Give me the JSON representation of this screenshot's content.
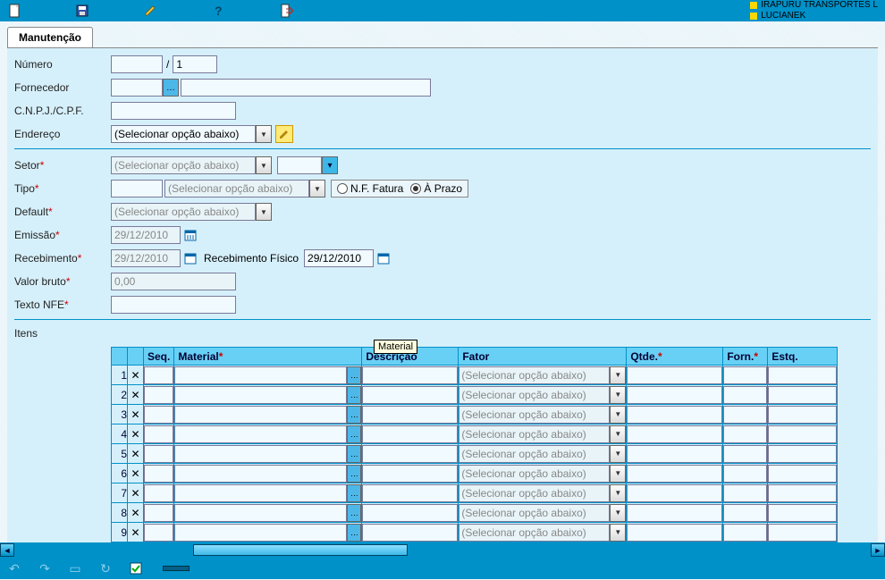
{
  "header": {
    "company_line": "IRAPURU TRANSPORTES L",
    "user_line": "LUCIANEK"
  },
  "tab": {
    "label": "Manutenção"
  },
  "form": {
    "numero": {
      "label": "Número",
      "val1": "",
      "sep": "/",
      "val2": "1"
    },
    "fornecedor": {
      "label": "Fornecedor",
      "code": "",
      "name": ""
    },
    "cnpj": {
      "label": "C.N.P.J./C.P.F.",
      "value": ""
    },
    "endereco": {
      "label": "Endereço",
      "select": "(Selecionar opção abaixo)"
    },
    "setor": {
      "label": "Setor",
      "select": "(Selecionar opção abaixo)",
      "code": ""
    },
    "tipo": {
      "label": "Tipo",
      "code": "",
      "select": "(Selecionar opção abaixo)",
      "radio1": "N.F. Fatura",
      "radio2": "À Prazo"
    },
    "default": {
      "label": "Default",
      "select": "(Selecionar opção abaixo)"
    },
    "emissao": {
      "label": "Emissão",
      "date": "29/12/2010"
    },
    "recebimento": {
      "label": "Recebimento",
      "date": "29/12/2010",
      "fisico_label": "Recebimento Físico",
      "fisico_date": "29/12/2010"
    },
    "valor": {
      "label": "Valor bruto",
      "value": "0,00"
    },
    "nfe": {
      "label": "Texto NFE",
      "value": ""
    }
  },
  "tooltip": "Material",
  "items": {
    "section_label": "Itens",
    "columns": {
      "seq": "Seq.",
      "material": "Material",
      "descricao": "Descrição",
      "fator": "Fator",
      "qtde": "Qtde.",
      "forn": "Forn.",
      "estq": "Estq."
    },
    "fator_placeholder": "(Selecionar opção abaixo)",
    "row_count": 9
  }
}
